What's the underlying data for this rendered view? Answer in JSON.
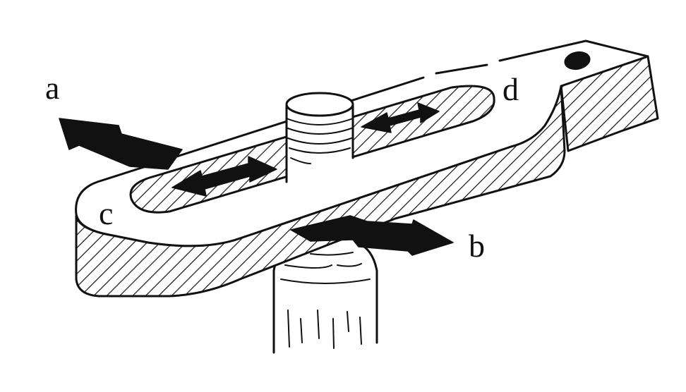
{
  "labels": {
    "a": "a",
    "b": "b",
    "c": "c",
    "d": "d"
  },
  "colors": {
    "ink": "#111111",
    "background": "#ffffff"
  }
}
